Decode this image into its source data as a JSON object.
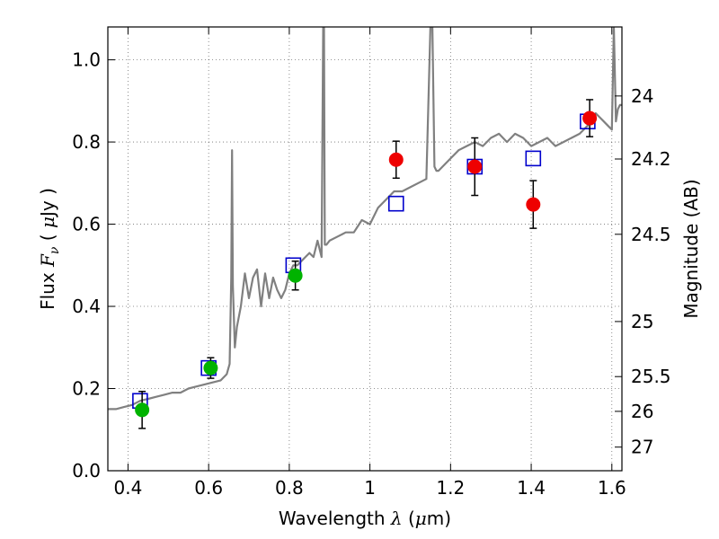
{
  "chart_data": {
    "type": "scatter",
    "title": "",
    "xlabel": "Wavelength  λ (μm)",
    "ylabel": "Flux  Fν ( μJy )",
    "y2label": "Magnitude (AB)",
    "xlim": [
      0.35,
      1.625
    ],
    "ylim": [
      0.0,
      1.08
    ],
    "grid": true,
    "x_ticks": [
      0.4,
      0.6,
      0.8,
      1.0,
      1.2,
      1.4,
      1.6
    ],
    "x_tick_labels": [
      "0.4",
      "0.6",
      "0.8",
      "1",
      "1.2",
      "1.4",
      "1.6"
    ],
    "y_ticks": [
      0.0,
      0.2,
      0.4,
      0.6,
      0.8,
      1.0
    ],
    "y_tick_labels": [
      "0.0",
      "0.2",
      "0.4",
      "0.6",
      "0.8",
      "1.0"
    ],
    "y2_ticks": [
      {
        "label": "24",
        "flux": 0.912
      },
      {
        "label": "24.2",
        "flux": 0.7586
      },
      {
        "label": "24.5",
        "flux": 0.5754
      },
      {
        "label": "25",
        "flux": 0.3631
      },
      {
        "label": "25.5",
        "flux": 0.2291
      },
      {
        "label": "26",
        "flux": 0.1445
      },
      {
        "label": "27",
        "flux": 0.0575
      }
    ],
    "colors": {
      "spectrum": "#808080",
      "model_squares": "#0000cc",
      "green_points": "#00b300",
      "red_points": "#ee0000",
      "errorbar": "#000000"
    },
    "spectrum": {
      "x": [
        0.35,
        0.37,
        0.39,
        0.41,
        0.43,
        0.45,
        0.47,
        0.49,
        0.51,
        0.53,
        0.55,
        0.57,
        0.59,
        0.61,
        0.63,
        0.645,
        0.652,
        0.656,
        0.658,
        0.66,
        0.665,
        0.67,
        0.68,
        0.69,
        0.7,
        0.71,
        0.72,
        0.73,
        0.74,
        0.75,
        0.76,
        0.77,
        0.78,
        0.79,
        0.8,
        0.81,
        0.82,
        0.83,
        0.84,
        0.85,
        0.86,
        0.87,
        0.88,
        0.884,
        0.886,
        0.888,
        0.892,
        0.9,
        0.92,
        0.94,
        0.96,
        0.98,
        1.0,
        1.02,
        1.04,
        1.06,
        1.08,
        1.1,
        1.12,
        1.14,
        1.15,
        1.155,
        1.16,
        1.165,
        1.17,
        1.18,
        1.2,
        1.22,
        1.24,
        1.26,
        1.28,
        1.3,
        1.32,
        1.34,
        1.36,
        1.38,
        1.4,
        1.42,
        1.44,
        1.46,
        1.48,
        1.5,
        1.52,
        1.53,
        1.54,
        1.55,
        1.56,
        1.57,
        1.58,
        1.59,
        1.6,
        1.605,
        1.61,
        1.615,
        1.62,
        1.625
      ],
      "y": [
        0.15,
        0.15,
        0.155,
        0.16,
        0.17,
        0.175,
        0.18,
        0.185,
        0.19,
        0.19,
        0.2,
        0.205,
        0.21,
        0.215,
        0.22,
        0.235,
        0.26,
        0.47,
        0.78,
        0.45,
        0.3,
        0.35,
        0.4,
        0.48,
        0.42,
        0.47,
        0.49,
        0.4,
        0.48,
        0.42,
        0.47,
        0.44,
        0.42,
        0.44,
        0.48,
        0.5,
        0.5,
        0.51,
        0.52,
        0.53,
        0.52,
        0.56,
        0.52,
        1.08,
        1.08,
        0.55,
        0.55,
        0.56,
        0.57,
        0.58,
        0.58,
        0.61,
        0.6,
        0.64,
        0.66,
        0.68,
        0.68,
        0.69,
        0.7,
        0.71,
        1.08,
        1.08,
        0.74,
        0.73,
        0.73,
        0.74,
        0.76,
        0.78,
        0.79,
        0.8,
        0.79,
        0.81,
        0.82,
        0.8,
        0.82,
        0.81,
        0.79,
        0.8,
        0.81,
        0.79,
        0.8,
        0.81,
        0.82,
        0.83,
        0.84,
        0.86,
        0.87,
        0.86,
        0.85,
        0.84,
        0.83,
        1.08,
        0.85,
        0.88,
        0.89,
        0.89
      ]
    },
    "series": [
      {
        "marker": "square",
        "points": [
          {
            "x": 0.43,
            "y": 0.17
          },
          {
            "x": 0.6,
            "y": 0.25
          },
          {
            "x": 0.81,
            "y": 0.5
          },
          {
            "x": 1.065,
            "y": 0.65
          },
          {
            "x": 1.26,
            "y": 0.74
          },
          {
            "x": 1.405,
            "y": 0.76
          },
          {
            "x": 1.54,
            "y": 0.85
          }
        ]
      },
      {
        "marker": "circle",
        "points": [
          {
            "x": 0.435,
            "y": 0.148,
            "yerr": 0.045
          },
          {
            "x": 0.605,
            "y": 0.25,
            "yerr": 0.025
          },
          {
            "x": 0.815,
            "y": 0.475,
            "yerr": 0.035
          }
        ]
      },
      {
        "marker": "circle",
        "points": [
          {
            "x": 1.065,
            "y": 0.757,
            "yerr": 0.045
          },
          {
            "x": 1.26,
            "y": 0.74,
            "yerr": 0.07
          },
          {
            "x": 1.405,
            "y": 0.648,
            "yerr": 0.058
          },
          {
            "x": 1.545,
            "y": 0.858,
            "yerr": 0.045
          }
        ]
      }
    ]
  }
}
